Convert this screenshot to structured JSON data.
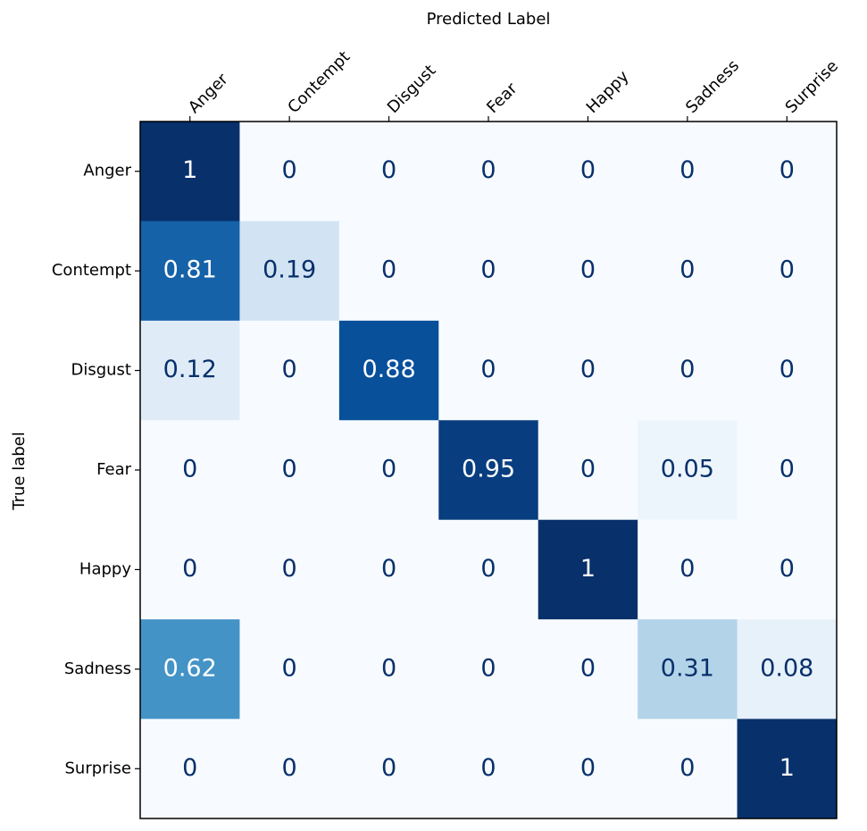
{
  "chart_data": {
    "type": "heatmap",
    "colormap": "Blues",
    "x_label": "Predicted Label",
    "y_label": "True label",
    "x_categories": [
      "Anger",
      "Contempt",
      "Disgust",
      "Fear",
      "Happy",
      "Sadness",
      "Surprise"
    ],
    "y_categories": [
      "Anger",
      "Contempt",
      "Disgust",
      "Fear",
      "Happy",
      "Sadness",
      "Surprise"
    ],
    "values": [
      [
        1,
        0,
        0,
        0,
        0,
        0,
        0
      ],
      [
        0.81,
        0.19,
        0,
        0,
        0,
        0,
        0
      ],
      [
        0.12,
        0,
        0.88,
        0,
        0,
        0,
        0
      ],
      [
        0,
        0,
        0,
        0.95,
        0,
        0.05,
        0
      ],
      [
        0,
        0,
        0,
        0,
        1,
        0,
        0
      ],
      [
        0.62,
        0,
        0,
        0,
        0,
        0.31,
        0.08
      ],
      [
        0,
        0,
        0,
        0,
        0,
        0,
        1
      ]
    ]
  }
}
